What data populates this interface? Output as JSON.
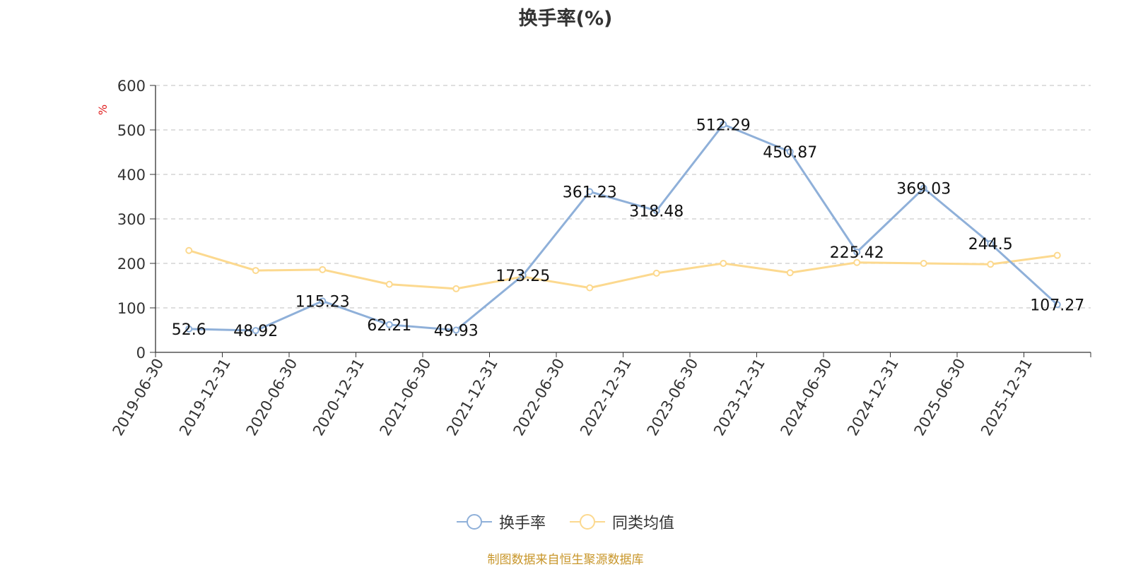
{
  "chart_data": {
    "type": "line",
    "title": "换手率(%)",
    "ylabel": "%",
    "xlabel": "",
    "ylim": [
      0,
      600
    ],
    "yticks": [
      0,
      100,
      200,
      300,
      400,
      500,
      600
    ],
    "grid": true,
    "legend_position": "bottom",
    "categories": [
      "2019-06-30",
      "2019-12-31",
      "2020-06-30",
      "2020-12-31",
      "2021-06-30",
      "2021-12-31",
      "2022-06-30",
      "2022-12-31",
      "2023-06-30",
      "2023-12-31",
      "2024-06-30",
      "2024-12-31",
      "2025-06-30",
      "2025-12-31"
    ],
    "series": [
      {
        "name": "换手率",
        "color": "#8fb0d9",
        "values": [
          52.6,
          48.92,
          115.23,
          62.21,
          49.93,
          173.25,
          361.23,
          318.48,
          512.29,
          450.87,
          225.42,
          369.03,
          244.5,
          107.27
        ],
        "labels": [
          "52.6",
          "48.92",
          "115.23",
          "62.21",
          "49.93",
          "173.25",
          "361.23",
          "318.48",
          "512.29",
          "450.87",
          "225.42",
          "369.03",
          "244.5",
          "107.27"
        ]
      },
      {
        "name": "同类均值",
        "color": "#fcd98f",
        "values": [
          229,
          184,
          186,
          153,
          143,
          170,
          145,
          178,
          200,
          179,
          202,
          200,
          198,
          218
        ]
      }
    ]
  },
  "source_note": "制图数据来自恒生聚源数据库"
}
